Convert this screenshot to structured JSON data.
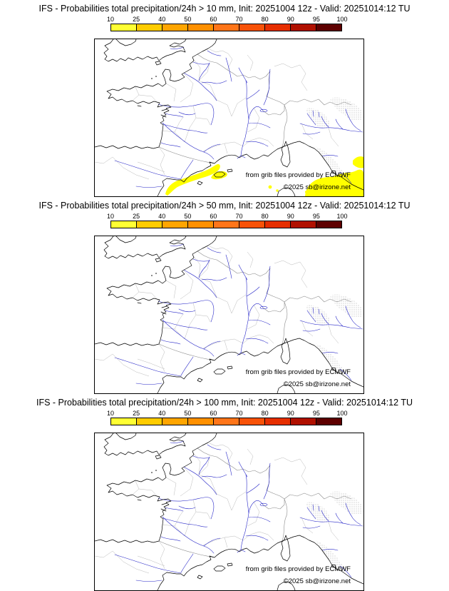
{
  "panels": [
    {
      "title": "IFS - Probabilities total precipitation/24h > 10 mm, Init: 20251004 12z - Valid: 20251014:12 TU",
      "threshold_label": "> 10 mm",
      "shows_probability_areas": true
    },
    {
      "title": "IFS - Probabilities total precipitation/24h > 50 mm, Init: 20251004 12z - Valid: 20251014:12 TU",
      "threshold_label": "> 50 mm",
      "shows_probability_areas": false
    },
    {
      "title": "IFS - Probabilities total precipitation/24h > 100 mm, Init: 20251004 12z - Valid: 20251014:12 TU",
      "threshold_label": "> 100 mm",
      "shows_probability_areas": false
    }
  ],
  "colorbar": {
    "tick_labels": [
      "10",
      "25",
      "40",
      "50",
      "60",
      "70",
      "80",
      "90",
      "95",
      "100"
    ],
    "segment_colors": [
      "#ffff33",
      "#ffcc00",
      "#ffa500",
      "#ff9000",
      "#ff7519",
      "#f85208",
      "#e62e00",
      "#b01000",
      "#5e0000"
    ]
  },
  "map": {
    "credit_line": "from grib files provided by ECMWF",
    "copyright_line": "©2025 sb@irizone.net",
    "colors": {
      "coastline": "#000000",
      "rivers": "#2929c8",
      "admin-boundaries": "#bababa",
      "country-borders": "#8c8c8c",
      "probability-fill": "#ffff00",
      "terrain-dots": "#9a9a9a"
    }
  }
}
